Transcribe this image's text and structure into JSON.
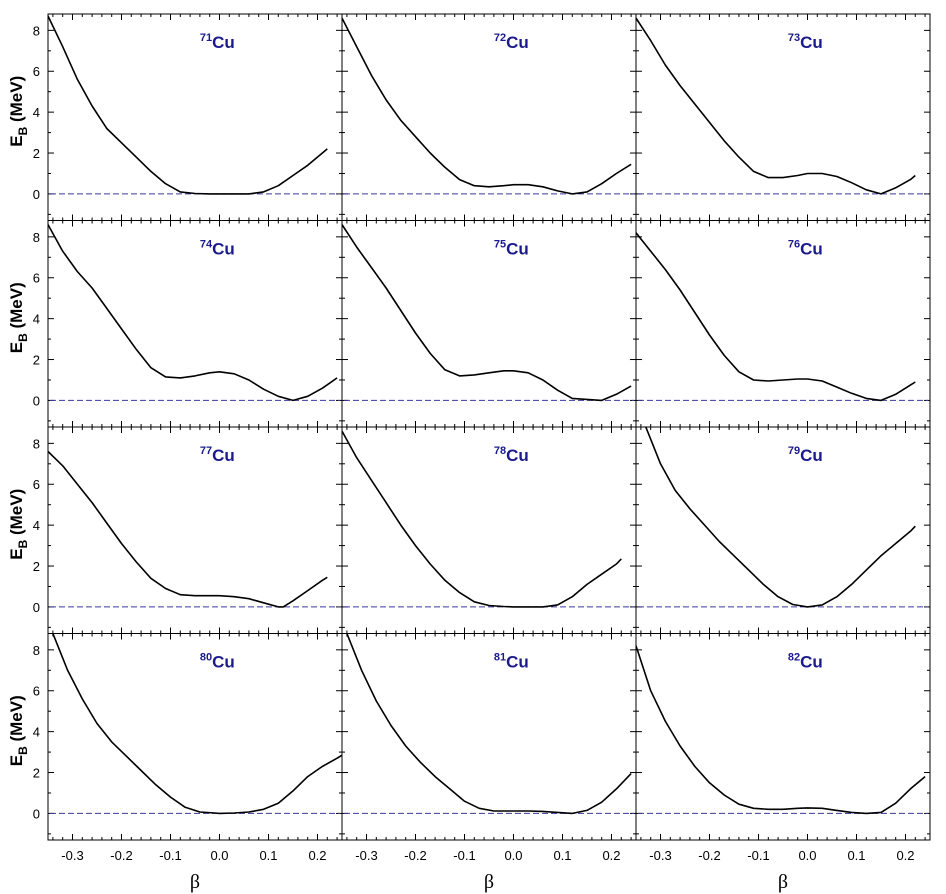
{
  "colors": {
    "curve": "#000000",
    "baseline": "#3a3aa0",
    "nucleus_label": "#1a1a8c",
    "frame": "#000000",
    "background": "#ffffff"
  },
  "axes": {
    "ylabel_main": "E",
    "ylabel_sub": "B",
    "ylabel_unit": " (MeV)",
    "xlabel": "β",
    "x_ticks": [
      -0.3,
      -0.2,
      -0.1,
      0.0,
      0.1,
      0.2
    ],
    "x_tick_labels": [
      "-0.3",
      "-0.2",
      "-0.1",
      "0.0",
      "0.1",
      "0.2"
    ],
    "y_ticks": [
      0,
      2,
      4,
      6,
      8
    ],
    "y_tick_labels": [
      "0",
      "2",
      "4",
      "6",
      "8"
    ]
  },
  "chart_data": {
    "type": "line",
    "grid": "4 rows x 3 columns of panels, shared axes",
    "xlim": [
      -0.35,
      0.25
    ],
    "ylim": [
      -1.3,
      8.8
    ],
    "reference_line": {
      "y": 0,
      "style": "dashed"
    },
    "panels": [
      {
        "mass": "71",
        "element": "Cu",
        "x": [
          -0.35,
          -0.32,
          -0.29,
          -0.26,
          -0.23,
          -0.2,
          -0.17,
          -0.14,
          -0.11,
          -0.08,
          -0.05,
          -0.02,
          0.0,
          0.03,
          0.06,
          0.09,
          0.12,
          0.15,
          0.18,
          0.21,
          0.22
        ],
        "y": [
          8.7,
          7.2,
          5.6,
          4.3,
          3.2,
          2.5,
          1.8,
          1.1,
          0.5,
          0.1,
          0.02,
          0.0,
          0.0,
          0.0,
          0.0,
          0.1,
          0.4,
          0.9,
          1.4,
          2.0,
          2.2
        ]
      },
      {
        "mass": "72",
        "element": "Cu",
        "x": [
          -0.35,
          -0.32,
          -0.29,
          -0.26,
          -0.23,
          -0.2,
          -0.17,
          -0.14,
          -0.11,
          -0.08,
          -0.05,
          -0.02,
          0.0,
          0.03,
          0.06,
          0.09,
          0.12,
          0.15,
          0.18,
          0.21,
          0.24
        ],
        "y": [
          8.6,
          7.2,
          5.8,
          4.6,
          3.6,
          2.8,
          2.0,
          1.3,
          0.7,
          0.4,
          0.35,
          0.4,
          0.45,
          0.45,
          0.35,
          0.15,
          0.0,
          0.1,
          0.5,
          1.0,
          1.45
        ]
      },
      {
        "mass": "73",
        "element": "Cu",
        "x": [
          -0.35,
          -0.32,
          -0.29,
          -0.26,
          -0.23,
          -0.2,
          -0.17,
          -0.14,
          -0.11,
          -0.08,
          -0.05,
          -0.02,
          0.0,
          0.03,
          0.06,
          0.09,
          0.12,
          0.15,
          0.18,
          0.21,
          0.22
        ],
        "y": [
          8.6,
          7.5,
          6.3,
          5.3,
          4.4,
          3.5,
          2.6,
          1.8,
          1.1,
          0.8,
          0.8,
          0.9,
          1.0,
          1.0,
          0.85,
          0.55,
          0.2,
          0.0,
          0.3,
          0.7,
          0.9
        ]
      },
      {
        "mass": "74",
        "element": "Cu",
        "x": [
          -0.35,
          -0.32,
          -0.29,
          -0.26,
          -0.23,
          -0.2,
          -0.17,
          -0.14,
          -0.11,
          -0.08,
          -0.05,
          -0.02,
          0.0,
          0.03,
          0.06,
          0.09,
          0.12,
          0.15,
          0.18,
          0.21,
          0.24
        ],
        "y": [
          8.6,
          7.3,
          6.3,
          5.5,
          4.5,
          3.5,
          2.5,
          1.6,
          1.15,
          1.1,
          1.2,
          1.35,
          1.4,
          1.3,
          1.0,
          0.55,
          0.2,
          0.0,
          0.2,
          0.6,
          1.1
        ]
      },
      {
        "mass": "75",
        "element": "Cu",
        "x": [
          -0.35,
          -0.32,
          -0.29,
          -0.26,
          -0.23,
          -0.2,
          -0.17,
          -0.14,
          -0.11,
          -0.08,
          -0.05,
          -0.02,
          0.0,
          0.03,
          0.06,
          0.09,
          0.12,
          0.15,
          0.18,
          0.21,
          0.24
        ],
        "y": [
          8.6,
          7.5,
          6.5,
          5.5,
          4.4,
          3.3,
          2.3,
          1.5,
          1.2,
          1.25,
          1.35,
          1.45,
          1.45,
          1.35,
          1.0,
          0.5,
          0.1,
          0.05,
          0.0,
          0.3,
          0.7
        ]
      },
      {
        "mass": "76",
        "element": "Cu",
        "x": [
          -0.35,
          -0.32,
          -0.29,
          -0.26,
          -0.23,
          -0.2,
          -0.17,
          -0.14,
          -0.11,
          -0.08,
          -0.05,
          -0.02,
          0.0,
          0.03,
          0.06,
          0.09,
          0.12,
          0.15,
          0.18,
          0.21,
          0.22
        ],
        "y": [
          8.2,
          7.3,
          6.4,
          5.4,
          4.3,
          3.2,
          2.2,
          1.4,
          1.0,
          0.95,
          1.0,
          1.05,
          1.05,
          0.95,
          0.65,
          0.35,
          0.1,
          0.0,
          0.3,
          0.75,
          0.9
        ]
      },
      {
        "mass": "77",
        "element": "Cu",
        "x": [
          -0.35,
          -0.32,
          -0.29,
          -0.26,
          -0.23,
          -0.2,
          -0.17,
          -0.14,
          -0.11,
          -0.08,
          -0.05,
          -0.02,
          0.0,
          0.03,
          0.06,
          0.09,
          0.12,
          0.13,
          0.15,
          0.18,
          0.21,
          0.22
        ],
        "y": [
          7.6,
          6.9,
          6.0,
          5.1,
          4.1,
          3.1,
          2.2,
          1.4,
          0.9,
          0.6,
          0.55,
          0.55,
          0.55,
          0.5,
          0.4,
          0.2,
          0.0,
          0.0,
          0.3,
          0.8,
          1.3,
          1.45
        ]
      },
      {
        "mass": "78",
        "element": "Cu",
        "x": [
          -0.35,
          -0.32,
          -0.29,
          -0.26,
          -0.23,
          -0.2,
          -0.17,
          -0.14,
          -0.11,
          -0.08,
          -0.05,
          -0.02,
          0.0,
          0.03,
          0.06,
          0.09,
          0.12,
          0.15,
          0.18,
          0.21,
          0.22
        ],
        "y": [
          8.6,
          7.3,
          6.2,
          5.1,
          4.0,
          3.0,
          2.1,
          1.3,
          0.7,
          0.25,
          0.07,
          0.02,
          0.0,
          0.0,
          0.0,
          0.1,
          0.5,
          1.1,
          1.6,
          2.1,
          2.35
        ]
      },
      {
        "mass": "79",
        "element": "Cu",
        "x": [
          -0.33,
          -0.3,
          -0.27,
          -0.24,
          -0.21,
          -0.18,
          -0.15,
          -0.12,
          -0.09,
          -0.06,
          -0.03,
          0.0,
          0.03,
          0.06,
          0.09,
          0.12,
          0.15,
          0.18,
          0.21,
          0.22
        ],
        "y": [
          8.8,
          7.0,
          5.7,
          4.8,
          4.0,
          3.2,
          2.5,
          1.8,
          1.1,
          0.5,
          0.12,
          0.0,
          0.1,
          0.5,
          1.1,
          1.8,
          2.5,
          3.1,
          3.7,
          3.95
        ]
      },
      {
        "mass": "80",
        "element": "Cu",
        "x": [
          -0.34,
          -0.31,
          -0.28,
          -0.25,
          -0.22,
          -0.19,
          -0.16,
          -0.13,
          -0.1,
          -0.07,
          -0.04,
          -0.01,
          0.0,
          0.03,
          0.06,
          0.09,
          0.12,
          0.15,
          0.18,
          0.21,
          0.24,
          0.26
        ],
        "y": [
          8.8,
          7.0,
          5.6,
          4.4,
          3.5,
          2.8,
          2.1,
          1.4,
          0.8,
          0.3,
          0.07,
          0.02,
          0.0,
          0.02,
          0.07,
          0.2,
          0.5,
          1.1,
          1.8,
          2.3,
          2.7,
          3.0
        ]
      },
      {
        "mass": "81",
        "element": "Cu",
        "x": [
          -0.34,
          -0.31,
          -0.28,
          -0.25,
          -0.22,
          -0.19,
          -0.16,
          -0.13,
          -0.1,
          -0.07,
          -0.04,
          -0.01,
          0.0,
          0.03,
          0.06,
          0.09,
          0.12,
          0.15,
          0.18,
          0.21,
          0.24
        ],
        "y": [
          8.8,
          7.0,
          5.5,
          4.3,
          3.3,
          2.5,
          1.8,
          1.2,
          0.6,
          0.25,
          0.12,
          0.12,
          0.12,
          0.12,
          0.1,
          0.05,
          0.0,
          0.15,
          0.55,
          1.2,
          1.95
        ]
      },
      {
        "mass": "82",
        "element": "Cu",
        "x": [
          -0.35,
          -0.32,
          -0.29,
          -0.26,
          -0.23,
          -0.2,
          -0.17,
          -0.14,
          -0.11,
          -0.08,
          -0.05,
          -0.02,
          0.0,
          0.03,
          0.06,
          0.09,
          0.12,
          0.15,
          0.18,
          0.21,
          0.24
        ],
        "y": [
          8.2,
          6.0,
          4.5,
          3.3,
          2.3,
          1.5,
          0.9,
          0.45,
          0.25,
          0.2,
          0.2,
          0.25,
          0.27,
          0.25,
          0.15,
          0.05,
          0.0,
          0.05,
          0.5,
          1.2,
          1.8
        ]
      }
    ]
  }
}
